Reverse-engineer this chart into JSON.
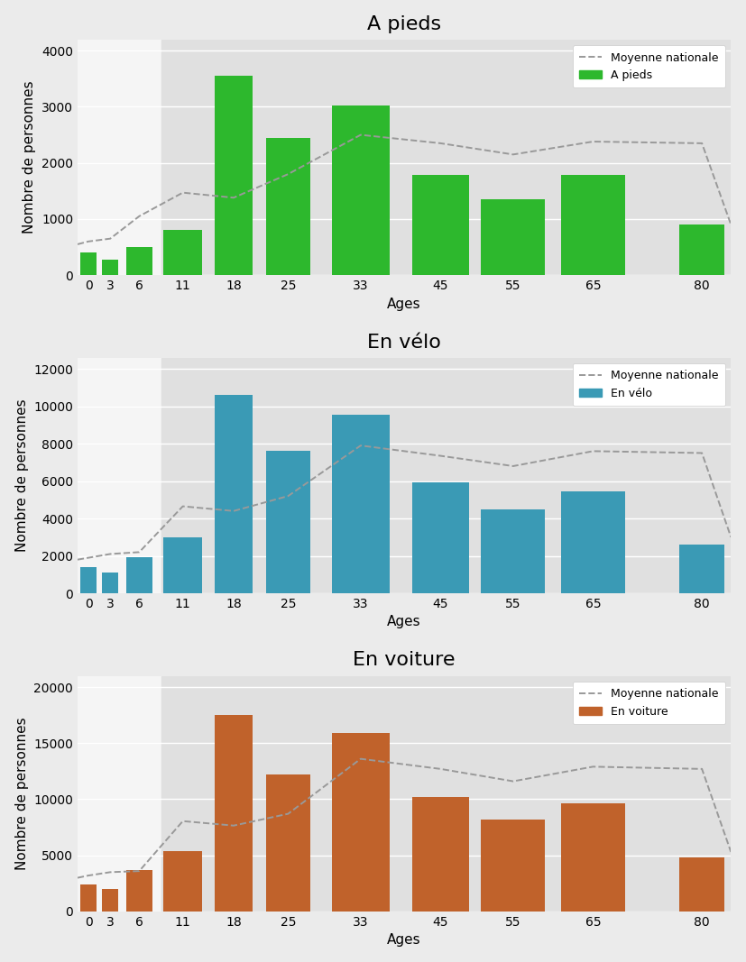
{
  "charts": [
    {
      "title": "A pieds",
      "bar_color": "#2db82d",
      "legend_label": "A pieds",
      "bar_values": [
        400,
        280,
        500,
        800,
        3550,
        2450,
        3020,
        1780,
        1360,
        1780,
        900
      ],
      "mean_x": [
        0,
        1.5,
        4.5,
        8.5,
        14.5,
        21.5,
        29,
        39,
        50,
        60,
        71,
        86,
        90
      ],
      "mean_y": [
        550,
        600,
        650,
        1050,
        1470,
        1380,
        1800,
        2500,
        2350,
        2150,
        2380,
        2350,
        900
      ],
      "ylim": [
        0,
        4200
      ],
      "yticks": [
        0,
        1000,
        2000,
        3000,
        4000
      ]
    },
    {
      "title": "En vélo",
      "bar_color": "#3a9ab5",
      "legend_label": "En vélo",
      "bar_values": [
        1400,
        1100,
        1950,
        3000,
        10600,
        7600,
        9550,
        5950,
        4500,
        5450,
        2600
      ],
      "mean_x": [
        0,
        1.5,
        4.5,
        8.5,
        14.5,
        21.5,
        29,
        39,
        50,
        60,
        71,
        86,
        90
      ],
      "mean_y": [
        1800,
        1900,
        2100,
        2200,
        4650,
        4400,
        5200,
        7900,
        7350,
        6800,
        7600,
        7500,
        3000
      ],
      "ylim": [
        0,
        12600
      ],
      "yticks": [
        0,
        2000,
        4000,
        6000,
        8000,
        10000,
        12000
      ]
    },
    {
      "title": "En voiture",
      "bar_color": "#c0622b",
      "legend_label": "En voiture",
      "bar_values": [
        2400,
        2000,
        3700,
        5400,
        17500,
        12200,
        15900,
        10200,
        8200,
        9650,
        4800
      ],
      "mean_x": [
        0,
        1.5,
        4.5,
        8.5,
        14.5,
        21.5,
        29,
        39,
        50,
        60,
        71,
        86,
        90
      ],
      "mean_y": [
        3000,
        3200,
        3500,
        3600,
        8050,
        7650,
        8700,
        13600,
        12700,
        11600,
        12900,
        12700,
        5300
      ],
      "ylim": [
        0,
        21000
      ],
      "yticks": [
        0,
        5000,
        10000,
        15000,
        20000
      ]
    }
  ],
  "bar_centers": [
    1.5,
    4.5,
    8.5,
    14.5,
    21.5,
    29.0,
    39.0,
    50.0,
    60.0,
    71.0,
    86.0
  ],
  "bar_widths": [
    2.5,
    2.5,
    4.0,
    6.0,
    6.0,
    7.0,
    9.0,
    9.0,
    10.0,
    10.0,
    7.0
  ],
  "age_tick_positions": [
    1.5,
    4.5,
    8.5,
    14.5,
    21.5,
    29.0,
    39.0,
    50.0,
    60.0,
    71.0,
    86.0
  ],
  "age_labels": [
    "0",
    "3",
    "6",
    "11",
    "18",
    "25",
    "33",
    "45",
    "55",
    "65",
    "80"
  ],
  "shaded_start": 11.5,
  "xlim": [
    0,
    90
  ],
  "xlabel": "Ages",
  "ylabel": "Nombre de personnes",
  "bg_color": "#ebebeb",
  "left_bg_color": "#f5f5f5",
  "right_bg_color": "#e0e0e0",
  "grid_color": "#ffffff",
  "mean_line_color": "#999999",
  "title_fontsize": 16,
  "axis_label_fontsize": 11,
  "tick_fontsize": 10
}
